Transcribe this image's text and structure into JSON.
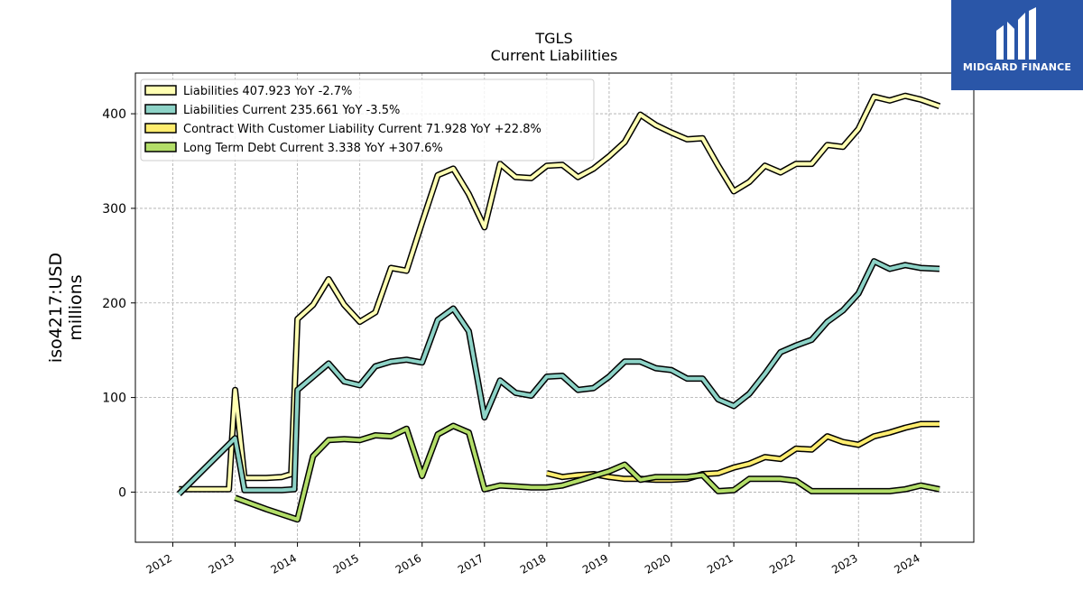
{
  "chart_data": {
    "type": "line",
    "title": "TGLS",
    "subtitle": "Current  Liabilities",
    "ylabel": [
      "iso4217:USD",
      "millions"
    ],
    "xlim": [
      2011.4,
      2024.85
    ],
    "ylim": [
      -53,
      443
    ],
    "yticks": [
      0,
      100,
      200,
      300,
      400
    ],
    "xticks": [
      "2012",
      "2013",
      "2014",
      "2015",
      "2016",
      "2017",
      "2018",
      "2019",
      "2020",
      "2021",
      "2022",
      "2023",
      "2024"
    ],
    "grid": true,
    "legend_position": "top-left",
    "series": [
      {
        "name": "Liabilities  407.923 YoY -2.7%",
        "color": "#ffffb3",
        "points": [
          [
            2012.1,
            3
          ],
          [
            2012.9,
            3
          ],
          [
            2013.0,
            108
          ],
          [
            2013.15,
            15
          ],
          [
            2013.5,
            15
          ],
          [
            2013.75,
            16
          ],
          [
            2013.9,
            19
          ],
          [
            2014.0,
            183
          ],
          [
            2014.25,
            198
          ],
          [
            2014.5,
            225
          ],
          [
            2014.75,
            198
          ],
          [
            2015.0,
            180
          ],
          [
            2015.25,
            190
          ],
          [
            2015.5,
            237
          ],
          [
            2015.75,
            234
          ],
          [
            2016.0,
            285
          ],
          [
            2016.25,
            335
          ],
          [
            2016.5,
            342
          ],
          [
            2016.75,
            315
          ],
          [
            2017.0,
            280
          ],
          [
            2017.25,
            347
          ],
          [
            2017.5,
            333
          ],
          [
            2017.75,
            332
          ],
          [
            2018.0,
            345
          ],
          [
            2018.25,
            346
          ],
          [
            2018.5,
            333
          ],
          [
            2018.75,
            342
          ],
          [
            2019.0,
            355
          ],
          [
            2019.25,
            370
          ],
          [
            2019.5,
            399
          ],
          [
            2019.75,
            388
          ],
          [
            2020.0,
            380
          ],
          [
            2020.25,
            373
          ],
          [
            2020.5,
            374
          ],
          [
            2020.75,
            345
          ],
          [
            2021.0,
            318
          ],
          [
            2021.25,
            328
          ],
          [
            2021.5,
            345
          ],
          [
            2021.75,
            338
          ],
          [
            2022.0,
            347
          ],
          [
            2022.25,
            347
          ],
          [
            2022.5,
            367
          ],
          [
            2022.75,
            365
          ],
          [
            2023.0,
            384
          ],
          [
            2023.25,
            418
          ],
          [
            2023.5,
            414
          ],
          [
            2023.75,
            419
          ],
          [
            2024.0,
            415
          ],
          [
            2024.3,
            408
          ]
        ]
      },
      {
        "name": "Liabilities Current  235.661 YoY -3.5%",
        "color": "#8dd3c7",
        "points": [
          [
            2012.1,
            -2
          ],
          [
            2013.0,
            57
          ],
          [
            2013.15,
            2
          ],
          [
            2013.5,
            2
          ],
          [
            2013.75,
            2
          ],
          [
            2013.95,
            3
          ],
          [
            2014.0,
            108
          ],
          [
            2014.25,
            122
          ],
          [
            2014.5,
            136
          ],
          [
            2014.75,
            117
          ],
          [
            2015.0,
            113
          ],
          [
            2015.25,
            133
          ],
          [
            2015.5,
            138
          ],
          [
            2015.75,
            140
          ],
          [
            2016.0,
            137
          ],
          [
            2016.25,
            182
          ],
          [
            2016.5,
            194
          ],
          [
            2016.75,
            170
          ],
          [
            2017.0,
            79
          ],
          [
            2017.25,
            118
          ],
          [
            2017.5,
            105
          ],
          [
            2017.75,
            102
          ],
          [
            2018.0,
            122
          ],
          [
            2018.25,
            123
          ],
          [
            2018.5,
            108
          ],
          [
            2018.75,
            110
          ],
          [
            2019.0,
            122
          ],
          [
            2019.25,
            138
          ],
          [
            2019.5,
            138
          ],
          [
            2019.75,
            131
          ],
          [
            2020.0,
            129
          ],
          [
            2020.25,
            120
          ],
          [
            2020.5,
            120
          ],
          [
            2020.75,
            98
          ],
          [
            2021.0,
            91
          ],
          [
            2021.25,
            104
          ],
          [
            2021.5,
            125
          ],
          [
            2021.75,
            148
          ],
          [
            2022.0,
            155
          ],
          [
            2022.25,
            161
          ],
          [
            2022.5,
            180
          ],
          [
            2022.75,
            192
          ],
          [
            2023.0,
            210
          ],
          [
            2023.25,
            244
          ],
          [
            2023.5,
            236
          ],
          [
            2023.75,
            240
          ],
          [
            2024.0,
            237
          ],
          [
            2024.3,
            236
          ]
        ]
      },
      {
        "name": "Contract With Customer Liability Current  71.928 YoY +22.8%",
        "color": "#ffed6f",
        "points": [
          [
            2018.0,
            20
          ],
          [
            2018.25,
            16
          ],
          [
            2018.5,
            18
          ],
          [
            2018.75,
            19
          ],
          [
            2019.0,
            16
          ],
          [
            2019.25,
            14
          ],
          [
            2019.5,
            14
          ],
          [
            2019.75,
            13
          ],
          [
            2020.0,
            13
          ],
          [
            2020.25,
            14
          ],
          [
            2020.5,
            19
          ],
          [
            2020.75,
            20
          ],
          [
            2021.0,
            26
          ],
          [
            2021.25,
            30
          ],
          [
            2021.5,
            37
          ],
          [
            2021.75,
            35
          ],
          [
            2022.0,
            46
          ],
          [
            2022.25,
            45
          ],
          [
            2022.5,
            59
          ],
          [
            2022.75,
            53
          ],
          [
            2023.0,
            50
          ],
          [
            2023.25,
            59
          ],
          [
            2023.5,
            63
          ],
          [
            2023.75,
            68
          ],
          [
            2024.0,
            72
          ],
          [
            2024.3,
            72
          ]
        ]
      },
      {
        "name": "Long Term Debt Current  3.338 YoY +307.6%",
        "color": "#b3de69",
        "points": [
          [
            2013.0,
            -6
          ],
          [
            2013.5,
            -18
          ],
          [
            2014.0,
            -29
          ],
          [
            2014.25,
            38
          ],
          [
            2014.5,
            55
          ],
          [
            2014.75,
            56
          ],
          [
            2015.0,
            55
          ],
          [
            2015.25,
            60
          ],
          [
            2015.5,
            59
          ],
          [
            2015.75,
            67
          ],
          [
            2016.0,
            17
          ],
          [
            2016.25,
            61
          ],
          [
            2016.5,
            70
          ],
          [
            2016.75,
            63
          ],
          [
            2017.0,
            3
          ],
          [
            2017.25,
            7
          ],
          [
            2017.5,
            6
          ],
          [
            2017.75,
            5
          ],
          [
            2018.0,
            5
          ],
          [
            2018.25,
            7
          ],
          [
            2018.5,
            12
          ],
          [
            2018.75,
            17
          ],
          [
            2019.0,
            22
          ],
          [
            2019.25,
            29
          ],
          [
            2019.5,
            13
          ],
          [
            2019.75,
            16
          ],
          [
            2020.0,
            16
          ],
          [
            2020.25,
            16
          ],
          [
            2020.5,
            18
          ],
          [
            2020.75,
            1
          ],
          [
            2021.0,
            2
          ],
          [
            2021.25,
            14
          ],
          [
            2021.5,
            14
          ],
          [
            2021.75,
            14
          ],
          [
            2022.0,
            12
          ],
          [
            2022.25,
            1
          ],
          [
            2022.5,
            1
          ],
          [
            2022.75,
            1
          ],
          [
            2023.0,
            1
          ],
          [
            2023.25,
            1
          ],
          [
            2023.5,
            1
          ],
          [
            2023.75,
            3
          ],
          [
            2024.0,
            7
          ],
          [
            2024.3,
            3
          ]
        ]
      }
    ]
  },
  "logo": {
    "text": "MIDGARD FINANCE",
    "color": "#2a56a8"
  }
}
